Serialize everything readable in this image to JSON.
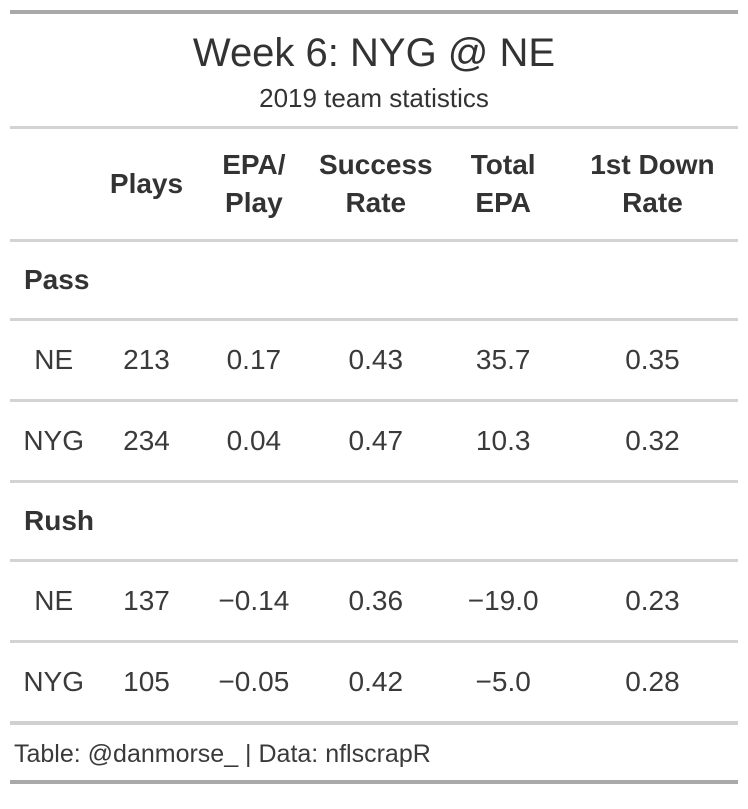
{
  "colors": {
    "accent_bar": "#a9a9a9",
    "separator": "#d3d3d3",
    "text": "#333333",
    "background": "#ffffff"
  },
  "header": {
    "title": "Week 6: NYG @ NE",
    "subtitle": "2019 team statistics"
  },
  "columns": {
    "team": "",
    "plays": "Plays",
    "epa_play_line1": "EPA/",
    "epa_play_line2": "Play",
    "success_line1": "Success",
    "success_line2": "Rate",
    "total_epa_line1": "Total",
    "total_epa_line2": "EPA",
    "first_down_line1": "1st Down",
    "first_down_line2": "Rate"
  },
  "groups": [
    {
      "label": "Pass",
      "rows": [
        {
          "team": "NE",
          "plays": "213",
          "epa_play": "0.17",
          "success_rate": "0.43",
          "total_epa": "35.7",
          "first_down_rate": "0.35"
        },
        {
          "team": "NYG",
          "plays": "234",
          "epa_play": "0.04",
          "success_rate": "0.47",
          "total_epa": "10.3",
          "first_down_rate": "0.32"
        }
      ]
    },
    {
      "label": "Rush",
      "rows": [
        {
          "team": "NE",
          "plays": "137",
          "epa_play": "−0.14",
          "success_rate": "0.36",
          "total_epa": "−19.0",
          "first_down_rate": "0.23"
        },
        {
          "team": "NYG",
          "plays": "105",
          "epa_play": "−0.05",
          "success_rate": "0.42",
          "total_epa": "−5.0",
          "first_down_rate": "0.28"
        }
      ]
    }
  ],
  "footer": {
    "credit": "Table: @danmorse_ | Data: nflscrapR"
  },
  "chart_data": {
    "type": "table",
    "title": "Week 6: NYG @ NE",
    "subtitle": "2019 team statistics",
    "columns": [
      "",
      "Plays",
      "EPA/Play",
      "Success Rate",
      "Total EPA",
      "1st Down Rate"
    ],
    "groups": [
      {
        "name": "Pass",
        "rows": [
          [
            "NE",
            213,
            0.17,
            0.43,
            35.7,
            0.35
          ],
          [
            "NYG",
            234,
            0.04,
            0.47,
            10.3,
            0.32
          ]
        ]
      },
      {
        "name": "Rush",
        "rows": [
          [
            "NE",
            137,
            -0.14,
            0.36,
            -19.0,
            0.23
          ],
          [
            "NYG",
            105,
            -0.05,
            0.42,
            -5.0,
            0.28
          ]
        ]
      }
    ],
    "footer": "Table: @danmorse_ | Data: nflscrapR"
  }
}
